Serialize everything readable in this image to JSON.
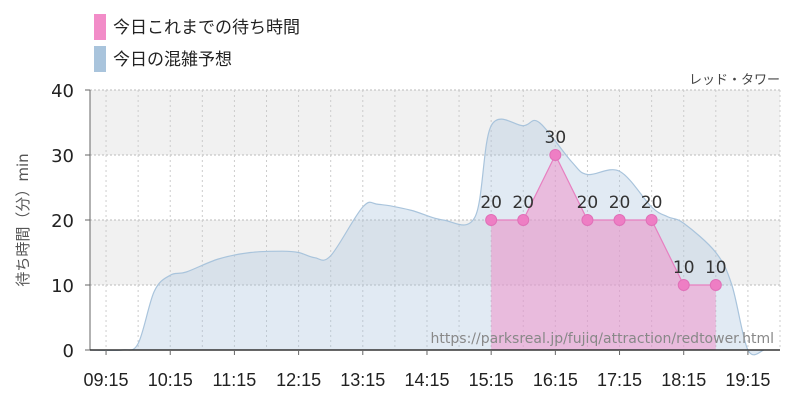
{
  "chart_data": {
    "type": "area",
    "title": "レッド・タワー",
    "ylabel": "待ち時間（分）min",
    "xlabel": "",
    "ylim": [
      0,
      40
    ],
    "yticks": [
      0,
      10,
      20,
      30,
      40
    ],
    "xticks": [
      "09:15",
      "10:15",
      "11:15",
      "12:15",
      "13:15",
      "14:15",
      "15:15",
      "16:15",
      "17:15",
      "18:15",
      "19:15"
    ],
    "grid": true,
    "legend_placement": "top-left",
    "series": [
      {
        "name": "今日これまでの待ち時間",
        "color": "#f28cc8",
        "points": [
          {
            "x": "15:15",
            "y": 20
          },
          {
            "x": "15:45",
            "y": 20
          },
          {
            "x": "16:15",
            "y": 30
          },
          {
            "x": "16:45",
            "y": 20
          },
          {
            "x": "17:15",
            "y": 20
          },
          {
            "x": "17:45",
            "y": 20
          },
          {
            "x": "18:15",
            "y": 10
          },
          {
            "x": "18:45",
            "y": 10
          }
        ]
      },
      {
        "name": "今日の混雑予想",
        "color": "#a9c4dc",
        "points": [
          {
            "x": "09:00",
            "y": 0
          },
          {
            "x": "09:30",
            "y": 0
          },
          {
            "x": "09:45",
            "y": 1
          },
          {
            "x": "10:00",
            "y": 9
          },
          {
            "x": "10:15",
            "y": 11.5
          },
          {
            "x": "10:30",
            "y": 12
          },
          {
            "x": "11:00",
            "y": 14
          },
          {
            "x": "11:30",
            "y": 15
          },
          {
            "x": "12:00",
            "y": 15.2
          },
          {
            "x": "12:15",
            "y": 15
          },
          {
            "x": "12:30",
            "y": 14.2
          },
          {
            "x": "12:45",
            "y": 14.5
          },
          {
            "x": "13:15",
            "y": 22
          },
          {
            "x": "13:30",
            "y": 22.4
          },
          {
            "x": "14:00",
            "y": 21.5
          },
          {
            "x": "14:30",
            "y": 20
          },
          {
            "x": "15:00",
            "y": 20.5
          },
          {
            "x": "15:15",
            "y": 34.5
          },
          {
            "x": "15:45",
            "y": 34.5
          },
          {
            "x": "16:00",
            "y": 35
          },
          {
            "x": "16:30",
            "y": 29
          },
          {
            "x": "16:45",
            "y": 27
          },
          {
            "x": "17:15",
            "y": 27.5
          },
          {
            "x": "17:45",
            "y": 22
          },
          {
            "x": "18:00",
            "y": 20.5
          },
          {
            "x": "18:15",
            "y": 19.5
          },
          {
            "x": "18:45",
            "y": 15
          },
          {
            "x": "19:00",
            "y": 10
          },
          {
            "x": "19:15",
            "y": 0
          },
          {
            "x": "19:30",
            "y": 0
          }
        ]
      }
    ],
    "data_labels": [
      20,
      20,
      30,
      20,
      20,
      20,
      10,
      10
    ]
  },
  "legend": [
    {
      "label": "今日これまでの待ち時間",
      "color": "#f28cc8"
    },
    {
      "label": "今日の混雑予想",
      "color": "#a9c4dc"
    }
  ],
  "attribution": "https://parksreal.jp/fujiq/attraction/redtower.html"
}
